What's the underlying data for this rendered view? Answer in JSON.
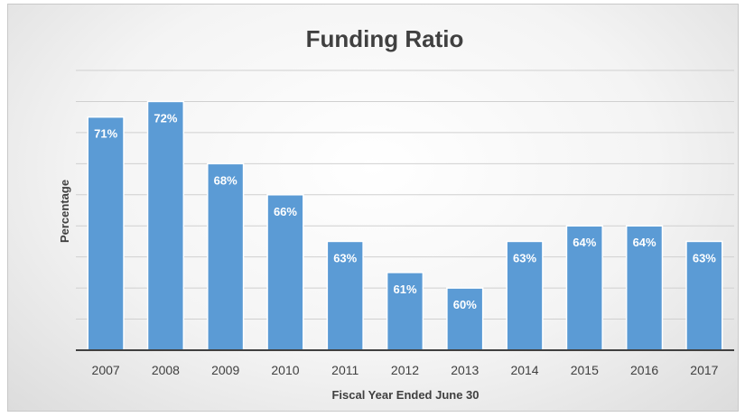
{
  "chart_data": {
    "type": "bar",
    "title": "Funding Ratio",
    "xlabel": "Fiscal Year Ended June 30",
    "ylabel": "Percentage",
    "categories": [
      "2007",
      "2008",
      "2009",
      "2010",
      "2011",
      "2012",
      "2013",
      "2014",
      "2015",
      "2016",
      "2017"
    ],
    "values": [
      71,
      72,
      68,
      66,
      63,
      61,
      60,
      63,
      64,
      64,
      63
    ],
    "data_labels": [
      "71%",
      "72%",
      "68%",
      "66%",
      "63%",
      "61%",
      "60%",
      "63%",
      "64%",
      "64%",
      "63%"
    ],
    "ylim": [
      56,
      74
    ],
    "gridlines": true,
    "bar_color": "#5b9bd5",
    "bar_border_color": "#ffffff",
    "gridline_color": "#d0d0d0",
    "axis_color": "#404040"
  }
}
